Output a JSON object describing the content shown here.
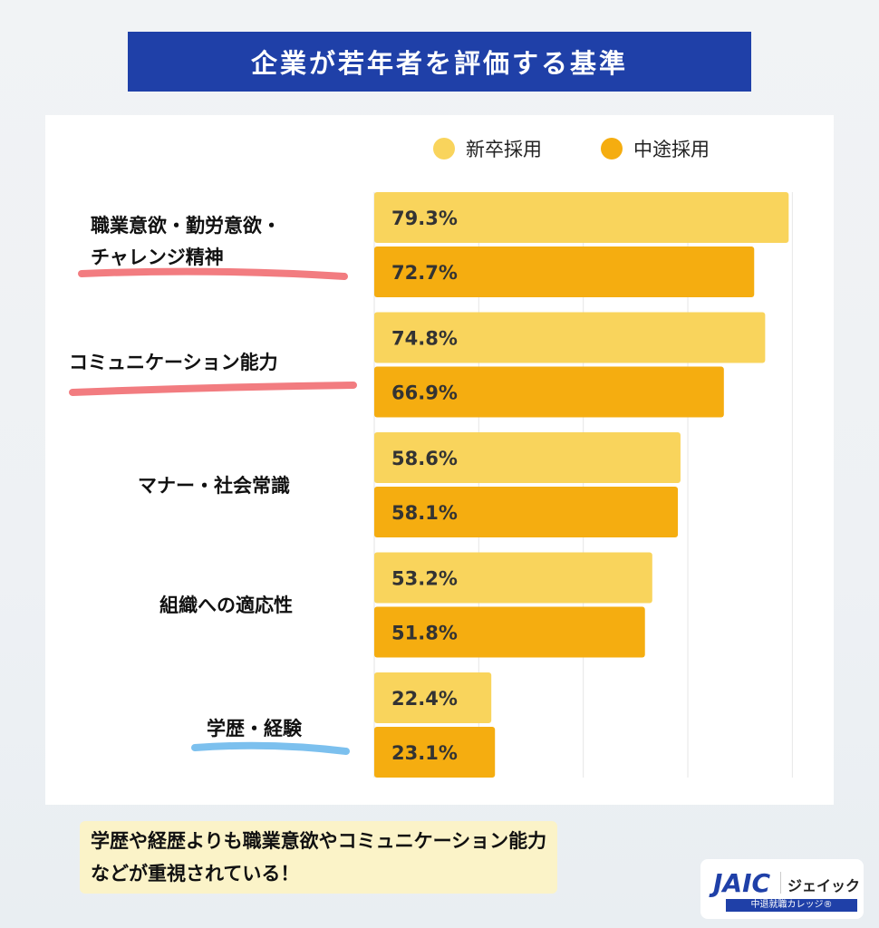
{
  "title": "企業が若年者を評価する基準",
  "chart_data": {
    "type": "bar",
    "orientation": "horizontal",
    "categories": [
      "職業意欲・勤労意欲・チャレンジ精神",
      "コミュニケーション能力",
      "マナー・社会常識",
      "組織への適応性",
      "学歴・経験"
    ],
    "category_lines": [
      [
        "職業意欲・勤労意欲・",
        "チャレンジ精神"
      ],
      [
        "コミュニケーション能力"
      ],
      [
        "マナー・社会常識"
      ],
      [
        "組織への適応性"
      ],
      [
        "学歴・経験"
      ]
    ],
    "series": [
      {
        "name": "新卒採用",
        "color": "#f9d45c",
        "values": [
          79.3,
          74.8,
          58.6,
          53.2,
          22.4
        ]
      },
      {
        "name": "中途採用",
        "color": "#f5ad10",
        "values": [
          72.7,
          66.9,
          58.1,
          51.8,
          23.1
        ]
      }
    ],
    "value_labels": [
      [
        "79.3%",
        "74.8%",
        "58.6%",
        "53.2%",
        "22.4%"
      ],
      [
        "72.7%",
        "66.9%",
        "58.1%",
        "51.8%",
        "23.1%"
      ]
    ],
    "xlim": [
      0,
      100
    ],
    "grid_x": [
      20,
      40,
      60,
      80
    ],
    "grid": true,
    "legend": "top-right",
    "underline_colors": [
      "#f27c80",
      "#f27c80",
      null,
      null,
      "#7cc0ee"
    ]
  },
  "note": {
    "line1": "学歴や経歴よりも職業意欲やコミュニケーション能力",
    "line2": "などが重視されている！"
  },
  "logo": {
    "brand": "JAIC",
    "kana": "ジェイック",
    "sub": "中退就職カレッジ®"
  }
}
